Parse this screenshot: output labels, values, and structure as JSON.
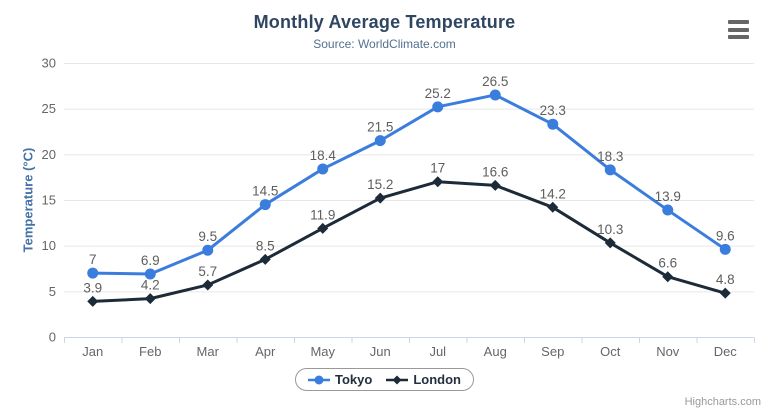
{
  "chart_data": {
    "type": "line",
    "title": "Monthly Average Temperature",
    "subtitle": "Source: WorldClimate.com",
    "xlabel": "",
    "ylabel": "Temperature (°C)",
    "ylim": [
      0,
      30
    ],
    "yticks": [
      0,
      5,
      10,
      15,
      20,
      25,
      30
    ],
    "grid": true,
    "data_labels": true,
    "legend_position": "bottom-center",
    "categories": [
      "Jan",
      "Feb",
      "Mar",
      "Apr",
      "May",
      "Jun",
      "Jul",
      "Aug",
      "Sep",
      "Oct",
      "Nov",
      "Dec"
    ],
    "series": [
      {
        "name": "Tokyo",
        "marker": "circle",
        "color": "#3B7DDD",
        "values": [
          7,
          6.9,
          9.5,
          14.5,
          18.4,
          21.5,
          25.2,
          26.5,
          23.3,
          18.3,
          13.9,
          9.6
        ]
      },
      {
        "name": "London",
        "marker": "diamond",
        "color": "#1D2B39",
        "values": [
          3.9,
          4.2,
          5.7,
          8.5,
          11.9,
          15.2,
          17,
          16.6,
          14.2,
          10.3,
          6.6,
          4.8
        ]
      }
    ]
  },
  "credits": {
    "text": "Highcharts.com"
  },
  "icons": {
    "context_menu": "hamburger-menu-icon",
    "tokyo_marker": "circle-marker-icon",
    "london_marker": "diamond-marker-icon"
  },
  "theme": {
    "title_color": "#2F4662",
    "subtitle_color": "#54708E",
    "axis_title_color": "#4572A7",
    "axis_label_color": "#666666",
    "data_label_color": "#5E5E5E",
    "gridline_color": "#E6E6E6",
    "axis_line_color": "#CCD6EB",
    "legend_text_color": "#24303F",
    "legend_border_color": "#999999",
    "credits_color": "#999999",
    "menu_icon_color": "#666666",
    "background": "#FFFFFF"
  }
}
